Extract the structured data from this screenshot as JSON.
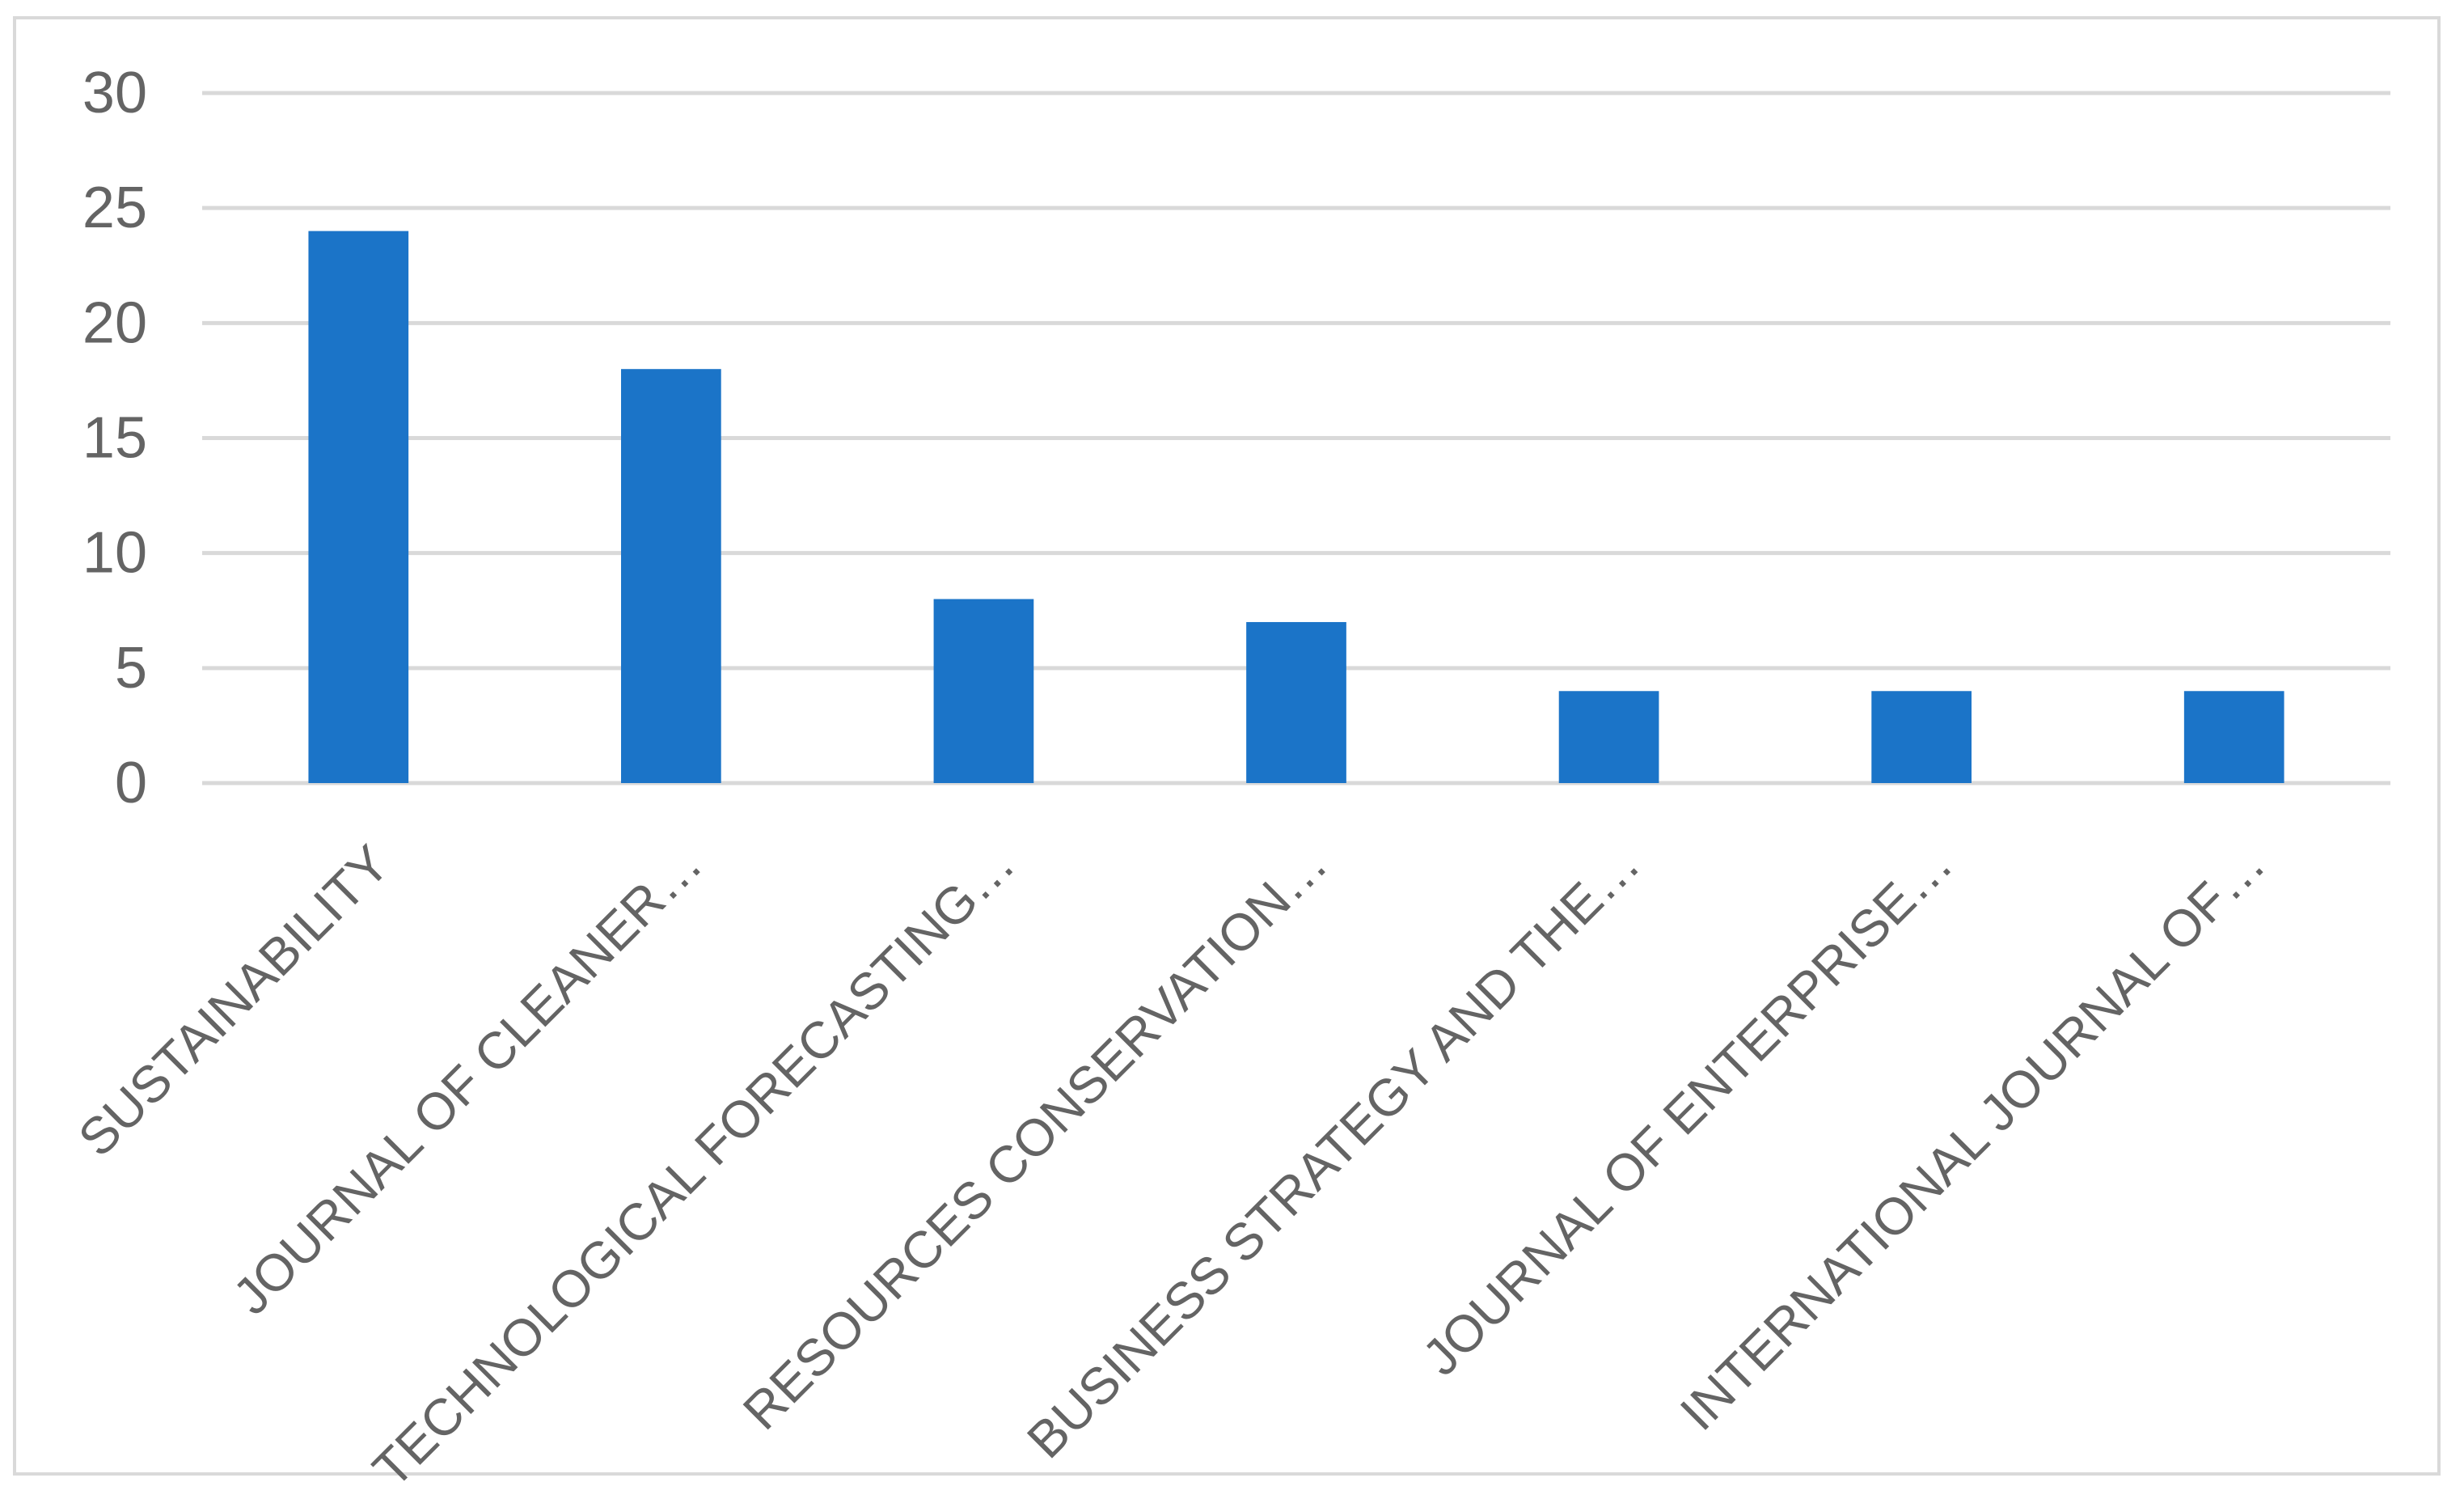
{
  "chart_data": {
    "type": "bar",
    "title": "",
    "xlabel": "",
    "ylabel": "",
    "categories": [
      "SUSTAINABILITY",
      "JOURNAL OF CLEANER…",
      "TECHNOLOGICAL FORECASTING…",
      "RESOURCES CONSERVATION…",
      "BUSINESS STRATEGY AND THE…",
      "JOURNAL OF ENTERPRISE…",
      "INTERNATIONAL JOURNAL OF…"
    ],
    "series": [
      {
        "name": "",
        "values": [
          24,
          18,
          8,
          7,
          4,
          4,
          4
        ]
      }
    ],
    "ylim": [
      0,
      30
    ],
    "yticks": [
      0,
      5,
      10,
      15,
      20,
      25,
      30
    ],
    "ytick_labels": [
      "0",
      "5",
      "10",
      "15",
      "20",
      "25",
      "30"
    ],
    "grid": "horizontal",
    "legend_position": "none",
    "category_label_rotation_deg": -45,
    "colors": {
      "bar": "#1B74C8",
      "gridline": "#D9D9D9",
      "chart_border": "#D9D9D9",
      "axis_text": "#646464",
      "background": "#FFFFFF"
    }
  }
}
